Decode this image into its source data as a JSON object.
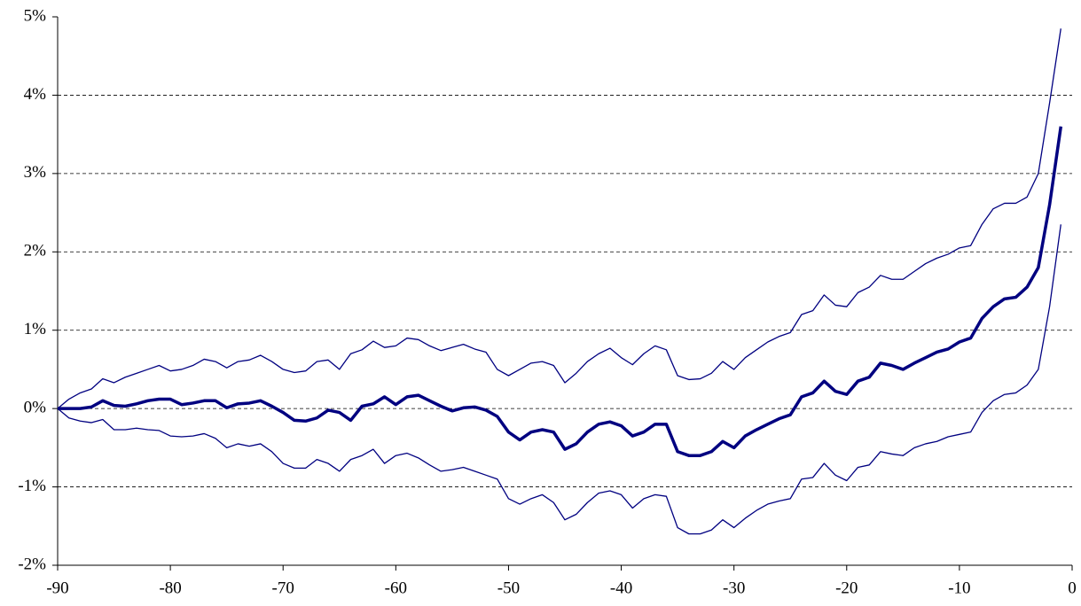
{
  "chart_data": {
    "type": "line",
    "x": [
      -90,
      -89,
      -88,
      -87,
      -86,
      -85,
      -84,
      -83,
      -82,
      -81,
      -80,
      -79,
      -78,
      -77,
      -76,
      -75,
      -74,
      -73,
      -72,
      -71,
      -70,
      -69,
      -68,
      -67,
      -66,
      -65,
      -64,
      -63,
      -62,
      -61,
      -60,
      -59,
      -58,
      -57,
      -56,
      -55,
      -54,
      -53,
      -52,
      -51,
      -50,
      -49,
      -48,
      -47,
      -46,
      -45,
      -44,
      -43,
      -42,
      -41,
      -40,
      -39,
      -38,
      -37,
      -36,
      -35,
      -34,
      -33,
      -32,
      -31,
      -30,
      -29,
      -28,
      -27,
      -26,
      -25,
      -24,
      -23,
      -22,
      -21,
      -20,
      -19,
      -18,
      -17,
      -16,
      -15,
      -14,
      -13,
      -12,
      -11,
      -10,
      -9,
      -8,
      -7,
      -6,
      -5,
      -4,
      -3,
      -2,
      -1
    ],
    "series": [
      {
        "color": "#000080",
        "linewidth": 1.3,
        "values": [
          0,
          0.12,
          0.2,
          0.25,
          0.38,
          0.33,
          0.4,
          0.45,
          0.5,
          0.55,
          0.48,
          0.5,
          0.55,
          0.63,
          0.6,
          0.52,
          0.6,
          0.62,
          0.68,
          0.6,
          0.5,
          0.46,
          0.48,
          0.6,
          0.62,
          0.5,
          0.7,
          0.75,
          0.86,
          0.78,
          0.8,
          0.9,
          0.88,
          0.8,
          0.74,
          0.78,
          0.82,
          0.76,
          0.72,
          0.5,
          0.42,
          0.5,
          0.58,
          0.6,
          0.55,
          0.33,
          0.45,
          0.6,
          0.7,
          0.77,
          0.65,
          0.56,
          0.7,
          0.8,
          0.75,
          0.42,
          0.37,
          0.38,
          0.45,
          0.6,
          0.5,
          0.65,
          0.75,
          0.85,
          0.92,
          0.97,
          1.2,
          1.25,
          1.45,
          1.32,
          1.3,
          1.48,
          1.55,
          1.7,
          1.65,
          1.65,
          1.75,
          1.85,
          1.92,
          1.97,
          2.05,
          2.08,
          2.35,
          2.55,
          2.62,
          2.62,
          2.7,
          3.0,
          3.9,
          4.85
        ]
      },
      {
        "color": "#000080",
        "linewidth": 3.5,
        "values": [
          0,
          0,
          0,
          0.02,
          0.1,
          0.04,
          0.03,
          0.06,
          0.1,
          0.12,
          0.12,
          0.05,
          0.07,
          0.1,
          0.1,
          0.01,
          0.06,
          0.07,
          0.1,
          0.03,
          -0.05,
          -0.15,
          -0.16,
          -0.12,
          -0.02,
          -0.05,
          -0.15,
          0.03,
          0.06,
          0.15,
          0.05,
          0.15,
          0.17,
          0.1,
          0.03,
          -0.03,
          0.01,
          0.02,
          -0.02,
          -0.1,
          -0.3,
          -0.4,
          -0.3,
          -0.27,
          -0.3,
          -0.52,
          -0.45,
          -0.3,
          -0.2,
          -0.17,
          -0.22,
          -0.35,
          -0.3,
          -0.2,
          -0.2,
          -0.55,
          -0.6,
          -0.6,
          -0.55,
          -0.42,
          -0.5,
          -0.35,
          -0.27,
          -0.2,
          -0.13,
          -0.08,
          0.15,
          0.2,
          0.35,
          0.22,
          0.18,
          0.35,
          0.4,
          0.58,
          0.55,
          0.5,
          0.58,
          0.65,
          0.72,
          0.76,
          0.85,
          0.9,
          1.15,
          1.3,
          1.4,
          1.42,
          1.55,
          1.8,
          2.6,
          3.6
        ]
      },
      {
        "color": "#000080",
        "linewidth": 1.3,
        "values": [
          0,
          -0.12,
          -0.16,
          -0.18,
          -0.14,
          -0.27,
          -0.27,
          -0.25,
          -0.27,
          -0.28,
          -0.35,
          -0.36,
          -0.35,
          -0.32,
          -0.38,
          -0.5,
          -0.45,
          -0.48,
          -0.45,
          -0.55,
          -0.7,
          -0.76,
          -0.76,
          -0.65,
          -0.7,
          -0.8,
          -0.65,
          -0.6,
          -0.52,
          -0.7,
          -0.6,
          -0.57,
          -0.63,
          -0.72,
          -0.8,
          -0.78,
          -0.75,
          -0.8,
          -0.85,
          -0.9,
          -1.15,
          -1.22,
          -1.15,
          -1.1,
          -1.2,
          -1.42,
          -1.35,
          -1.2,
          -1.08,
          -1.05,
          -1.1,
          -1.27,
          -1.15,
          -1.1,
          -1.12,
          -1.52,
          -1.6,
          -1.6,
          -1.55,
          -1.42,
          -1.52,
          -1.4,
          -1.3,
          -1.22,
          -1.18,
          -1.15,
          -0.9,
          -0.88,
          -0.7,
          -0.85,
          -0.92,
          -0.75,
          -0.72,
          -0.55,
          -0.58,
          -0.6,
          -0.5,
          -0.45,
          -0.42,
          -0.36,
          -0.33,
          -0.3,
          -0.05,
          0.1,
          0.18,
          0.2,
          0.3,
          0.5,
          1.3,
          2.35
        ]
      }
    ],
    "xlim": [
      -90,
      0
    ],
    "xticks": [
      -90,
      -80,
      -70,
      -60,
      -50,
      -40,
      -30,
      -20,
      -10,
      0
    ],
    "ylim": [
      -2,
      5
    ],
    "yticks": [
      {
        "value": -2,
        "label": "-2%"
      },
      {
        "value": -1,
        "label": "-1%"
      },
      {
        "value": 0,
        "label": "0%"
      },
      {
        "value": 1,
        "label": "1%"
      },
      {
        "value": 2,
        "label": "2%"
      },
      {
        "value": 3,
        "label": "3%"
      },
      {
        "value": 4,
        "label": "4%"
      },
      {
        "value": 5,
        "label": "5%"
      }
    ],
    "grid": true
  }
}
